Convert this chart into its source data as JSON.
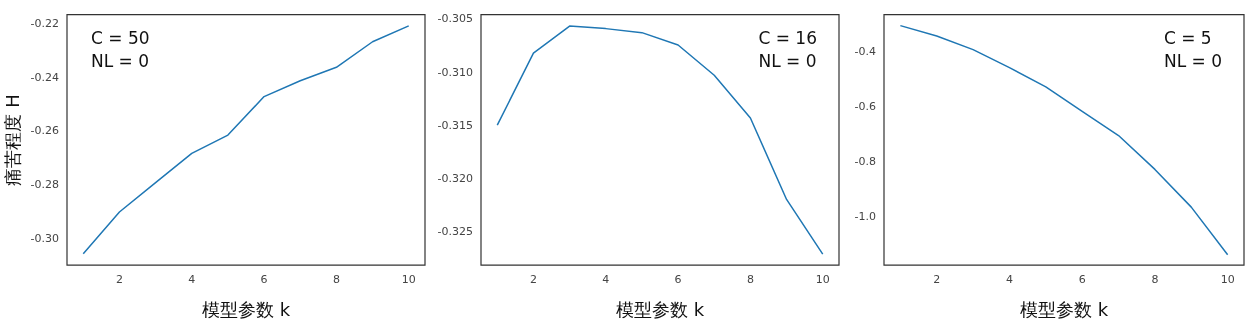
{
  "chart_data": [
    {
      "type": "line",
      "xlabel": "模型参数 k",
      "ylabel": "痛苦程度 H",
      "marker": "none",
      "x": [
        1,
        2,
        3,
        4,
        5,
        6,
        7,
        8,
        9,
        10
      ],
      "series": [
        {
          "color": "#1f77b4",
          "values": [
            -0.3054,
            -0.2899,
            -0.279,
            -0.2681,
            -0.2613,
            -0.247,
            -0.2411,
            -0.2361,
            -0.2266,
            -0.2207
          ]
        }
      ],
      "xlim": [
        0.55,
        10.45
      ],
      "ylim": [
        -0.3097,
        -0.2165
      ],
      "xticks": [
        2,
        4,
        6,
        8,
        10
      ],
      "yticks": [
        {
          "value": -0.3,
          "label": "-0.30"
        },
        {
          "value": -0.28,
          "label": "-0.28"
        },
        {
          "value": -0.26,
          "label": "-0.26"
        },
        {
          "value": -0.24,
          "label": "-0.24"
        },
        {
          "value": -0.22,
          "label": "-0.22"
        }
      ],
      "annotations": [
        "C = 50",
        "NL = 0"
      ]
    },
    {
      "type": "line",
      "xlabel": "模型参数 k",
      "marker": "none",
      "x": [
        1,
        2,
        3,
        4,
        5,
        6,
        7,
        8,
        9,
        10
      ],
      "series": [
        {
          "color": "#1f77b4",
          "values": [
            -0.31494,
            -0.30815,
            -0.30561,
            -0.30585,
            -0.30623,
            -0.30739,
            -0.31024,
            -0.31427,
            -0.32193,
            -0.32708
          ]
        }
      ],
      "xlim": [
        0.55,
        10.45
      ],
      "ylim": [
        -0.32812,
        -0.30453
      ],
      "xticks": [
        2,
        4,
        6,
        8,
        10
      ],
      "yticks": [
        {
          "value": -0.325,
          "label": "-0.325"
        },
        {
          "value": -0.32,
          "label": "-0.320"
        },
        {
          "value": -0.315,
          "label": "-0.315"
        },
        {
          "value": -0.31,
          "label": "-0.310"
        },
        {
          "value": -0.305,
          "label": "-0.305"
        }
      ],
      "annotations": [
        "C = 16",
        "NL = 0"
      ]
    },
    {
      "type": "line",
      "xlabel": "模型参数 k",
      "marker": "none",
      "x": [
        1,
        2,
        3,
        4,
        5,
        6,
        7,
        8,
        9,
        10
      ],
      "series": [
        {
          "color": "#1f77b4",
          "values": [
            -0.3027,
            -0.3405,
            -0.3897,
            -0.455,
            -0.525,
            -0.614,
            -0.702,
            -0.825,
            -0.962,
            -1.135
          ]
        }
      ],
      "xlim": [
        0.55,
        10.45
      ],
      "ylim": [
        -1.173,
        -0.2626
      ],
      "xticks": [
        2,
        4,
        6,
        8,
        10
      ],
      "yticks": [
        {
          "value": -1.0,
          "label": "-1.0"
        },
        {
          "value": -0.8,
          "label": "-0.8"
        },
        {
          "value": -0.6,
          "label": "-0.6"
        },
        {
          "value": -0.4,
          "label": "-0.4"
        }
      ],
      "annotations": [
        "C = 5",
        "NL = 0"
      ]
    }
  ]
}
